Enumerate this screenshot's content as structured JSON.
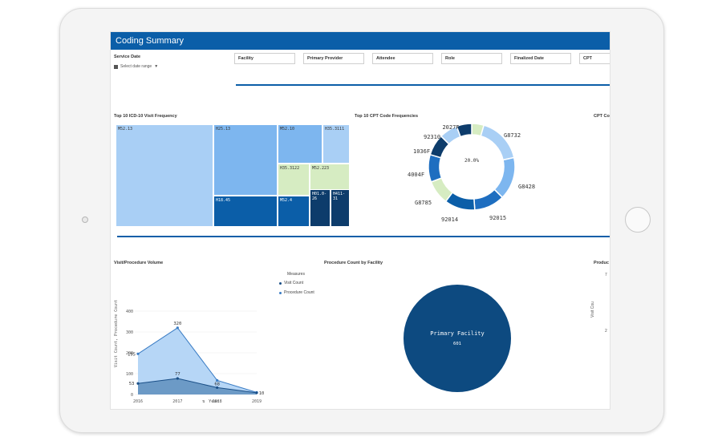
{
  "app": {
    "title": "Coding Summary"
  },
  "filters": {
    "service_date_label": "Service Date",
    "date_range_placeholder": "Select date range",
    "items": [
      "Facility",
      "Primary Provider",
      "Attendee",
      "Role",
      "Finalized Date",
      "CPT"
    ]
  },
  "panels": {
    "icd_title": "Top 10 ICD-10 Visit Frequency",
    "cpt_title": "Top 10 CPT Code Frequencies",
    "cpt_cut_title": "CPT Co",
    "volume_title": "Visit/Procedure Volume",
    "facility_title": "Procedure Count by Facility",
    "product_cut_title": "Produc"
  },
  "treemap": {
    "cells": [
      "M52.13",
      "H25.13",
      "M52.10",
      "H35.3111",
      "H35.3122",
      "M52.223",
      "H18.45",
      "M52.4",
      "H01.0-26",
      "H411-31"
    ]
  },
  "donut": {
    "center_label": "20.0%",
    "labels": [
      "2027F",
      "G8732",
      "92310",
      "1036F",
      "4004F",
      "G8428",
      "G8785",
      "92014",
      "92015"
    ]
  },
  "volume_chart": {
    "y_axis_label": "Visit Count, Procedure Count",
    "x_axis_label": "Year",
    "legend_title": "Measures",
    "legend": [
      "Visit Count",
      "Procedure Count"
    ]
  },
  "facility_pie": {
    "label": "Primary Facility",
    "value": "601"
  },
  "right_cut": {
    "axis_label": "Visit Cou",
    "tick_top": "7",
    "tick_mid": "2"
  },
  "colors": {
    "header": "#0b5ea8",
    "light_blue": "#a9cff5",
    "mid_blue": "#7db6ef",
    "dark_blue": "#0b5ea8",
    "navy": "#0d3c6b",
    "pale_green": "#d6ecc2"
  },
  "chart_data": [
    {
      "type": "area",
      "categories": [
        "2016",
        "2017",
        "2018",
        "2019"
      ],
      "series": [
        {
          "name": "Procedure Count",
          "values": [
            195,
            320,
            68,
            10
          ]
        },
        {
          "name": "Visit Count",
          "values": [
            53,
            77,
            33,
            8
          ]
        }
      ],
      "data_labels": [
        "195",
        "320",
        "53",
        "77",
        "68",
        "10"
      ],
      "y_ticks": [
        "400",
        "300",
        "200",
        "100",
        "0"
      ],
      "ylim": [
        0,
        400
      ],
      "xlabel": "Year",
      "ylabel": "Visit Count, Procedure Count",
      "legend": "right"
    },
    {
      "type": "pie",
      "categories": [
        "2027F",
        "G8732",
        "G8428",
        "92015",
        "92014",
        "G8785",
        "4004F",
        "1036F",
        "92310",
        "other"
      ],
      "values": [
        4,
        15,
        14,
        10,
        10,
        8,
        9,
        7,
        6,
        5
      ],
      "center_label": "20.0%"
    },
    {
      "type": "pie",
      "categories": [
        "Primary Facility"
      ],
      "values": [
        601
      ]
    }
  ]
}
